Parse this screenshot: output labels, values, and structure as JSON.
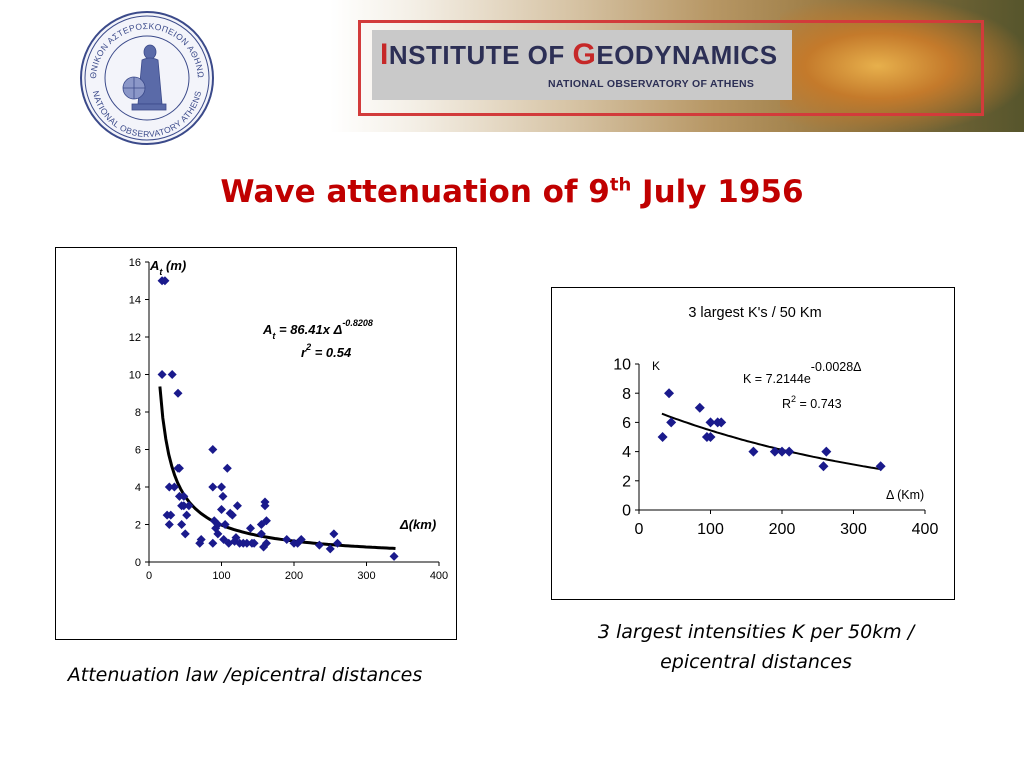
{
  "header": {
    "institute_cap1": "I",
    "institute_rest1": "NSTITUTE OF ",
    "institute_cap2": "G",
    "institute_rest2": "EODYNAMICS",
    "subtitle": "NATIONAL OBSERVATORY OF ATHENS",
    "seal_top_text": "ΕΘΝΙΚΟΝ ΑΣΤΕΡΟΣΚΟΠΕΙΟΝ ΑΘΗΝΩΝ",
    "seal_bottom_text": "NATIONAL OBSERVATORY ATHENS",
    "accent_color": "#c62828",
    "navy_color": "#2c2f55"
  },
  "slide": {
    "title_main": "Wave attenuation of  9",
    "title_sup": "th",
    "title_end": " July 1956",
    "title_color": "#c00000",
    "caption_left": "Attenuation law /epicentral distances",
    "caption_right_line1": "3 largest intensities K per 50km /",
    "caption_right_line2": "epicentral distances"
  },
  "chart_data": [
    {
      "type": "scatter",
      "title": "",
      "ylabel_main": "A",
      "ylabel_sub": "t",
      "ylabel_unit": " (m)",
      "xlabel": "Δ(km)",
      "equation_lhs": "A",
      "equation_sub": "t",
      "equation_rhs": " = 86.41x Δ",
      "equation_exp": "-0.8208",
      "r2_label": "r",
      "r2_exp": "2",
      "r2_value": "  = 0.54",
      "xlim": [
        0,
        400
      ],
      "ylim": [
        0,
        16
      ],
      "xticks": [
        "0",
        "100",
        "200",
        "300",
        "400"
      ],
      "yticks": [
        "0",
        "2",
        "4",
        "6",
        "8",
        "10",
        "12",
        "14",
        "16"
      ],
      "marker_color": "#1a1a8c",
      "fit": {
        "a": 86.41,
        "b": -0.8208,
        "x_from": 15,
        "x_to": 340
      },
      "points": [
        [
          18,
          15
        ],
        [
          22,
          15
        ],
        [
          18,
          10
        ],
        [
          32,
          10
        ],
        [
          40,
          9
        ],
        [
          25,
          2.5
        ],
        [
          30,
          2.5
        ],
        [
          28,
          2
        ],
        [
          28,
          4
        ],
        [
          35,
          4
        ],
        [
          40,
          5
        ],
        [
          42,
          5
        ],
        [
          42,
          3.5
        ],
        [
          45,
          3
        ],
        [
          48,
          3
        ],
        [
          52,
          2.5
        ],
        [
          55,
          3
        ],
        [
          45,
          2
        ],
        [
          50,
          1.5
        ],
        [
          48,
          3.5
        ],
        [
          70,
          1
        ],
        [
          72,
          1.2
        ],
        [
          88,
          6
        ],
        [
          88,
          4
        ],
        [
          90,
          2.2
        ],
        [
          92,
          1.8
        ],
        [
          95,
          2
        ],
        [
          88,
          1
        ],
        [
          95,
          1.5
        ],
        [
          100,
          4
        ],
        [
          102,
          3.5
        ],
        [
          100,
          2.8
        ],
        [
          105,
          2
        ],
        [
          103,
          1.2
        ],
        [
          108,
          5
        ],
        [
          110,
          1
        ],
        [
          112,
          2.6
        ],
        [
          115,
          2.5
        ],
        [
          118,
          1.1
        ],
        [
          120,
          1.3
        ],
        [
          122,
          3
        ],
        [
          125,
          1
        ],
        [
          130,
          1
        ],
        [
          135,
          1
        ],
        [
          140,
          1.8
        ],
        [
          142,
          1
        ],
        [
          145,
          1
        ],
        [
          155,
          2
        ],
        [
          155,
          1.5
        ],
        [
          160,
          3.2
        ],
        [
          160,
          3
        ],
        [
          158,
          0.8
        ],
        [
          162,
          1
        ],
        [
          162,
          2.2
        ],
        [
          190,
          1.2
        ],
        [
          200,
          1
        ],
        [
          205,
          1
        ],
        [
          210,
          1.2
        ],
        [
          235,
          0.9
        ],
        [
          250,
          0.7
        ],
        [
          255,
          1.5
        ],
        [
          260,
          1
        ],
        [
          338,
          0.3
        ]
      ]
    },
    {
      "type": "scatter",
      "title": "3 largest K's / 50 Km",
      "ylabel": "K",
      "xlabel": "Δ (Km)",
      "equation": "K = 7.2144e",
      "equation_exp": "-0.0028Δ",
      "r2_label": "R",
      "r2_exp": "2",
      "r2_value": " = 0.743",
      "xlim": [
        0,
        400
      ],
      "ylim": [
        0,
        10
      ],
      "xticks": [
        "0",
        "100",
        "200",
        "300",
        "400"
      ],
      "yticks": [
        "0",
        "2",
        "4",
        "6",
        "8",
        "10"
      ],
      "marker_color": "#1a1a8c",
      "fit": {
        "a": 7.2144,
        "b": -0.0028,
        "x_from": 32,
        "x_to": 340
      },
      "points": [
        [
          33,
          5
        ],
        [
          42,
          8
        ],
        [
          45,
          6
        ],
        [
          85,
          7
        ],
        [
          95,
          5
        ],
        [
          100,
          5
        ],
        [
          100,
          6
        ],
        [
          110,
          6
        ],
        [
          115,
          6
        ],
        [
          160,
          4
        ],
        [
          190,
          4
        ],
        [
          200,
          4
        ],
        [
          210,
          4
        ],
        [
          258,
          3
        ],
        [
          262,
          4
        ],
        [
          338,
          3
        ]
      ]
    }
  ]
}
